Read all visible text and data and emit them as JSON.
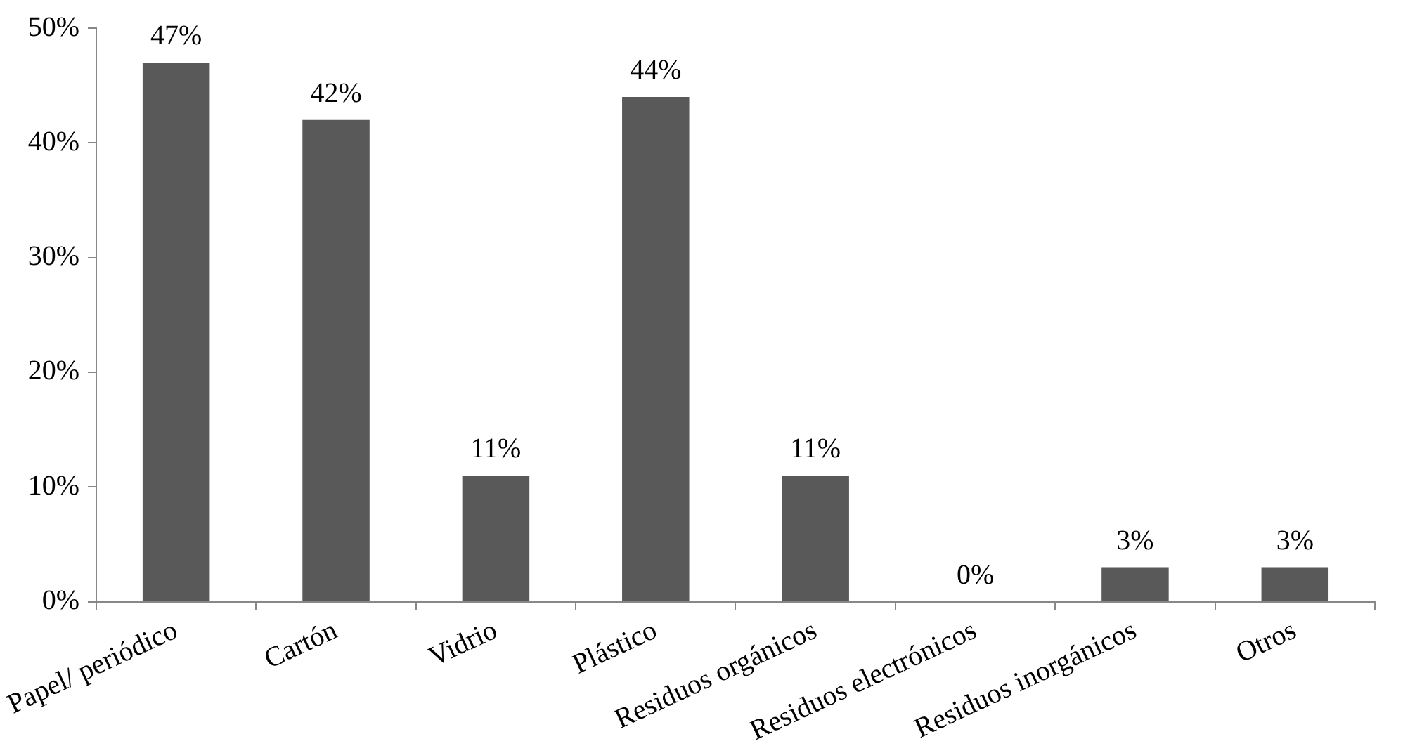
{
  "chart_data": {
    "type": "bar",
    "categories": [
      "Papel/ periódico",
      "Cartón",
      "Vidrio",
      "Plástico",
      "Residuos orgánicos",
      "Residuos electrónicos",
      "Residuos inorgánicos",
      "Otros"
    ],
    "values": [
      47,
      42,
      11,
      44,
      11,
      0,
      3,
      3
    ],
    "value_labels": [
      "47%",
      "42%",
      "11%",
      "44%",
      "11%",
      "0%",
      "3%",
      "3%"
    ],
    "color": "#595959",
    "ylim": [
      0,
      50
    ],
    "yticks": [
      {
        "value": 0,
        "label": "0%"
      },
      {
        "value": 10,
        "label": "10%"
      },
      {
        "value": 20,
        "label": "20%"
      },
      {
        "value": 30,
        "label": "30%"
      },
      {
        "value": 40,
        "label": "40%"
      },
      {
        "value": 50,
        "label": "50%"
      }
    ],
    "grid": false,
    "legend": false
  }
}
